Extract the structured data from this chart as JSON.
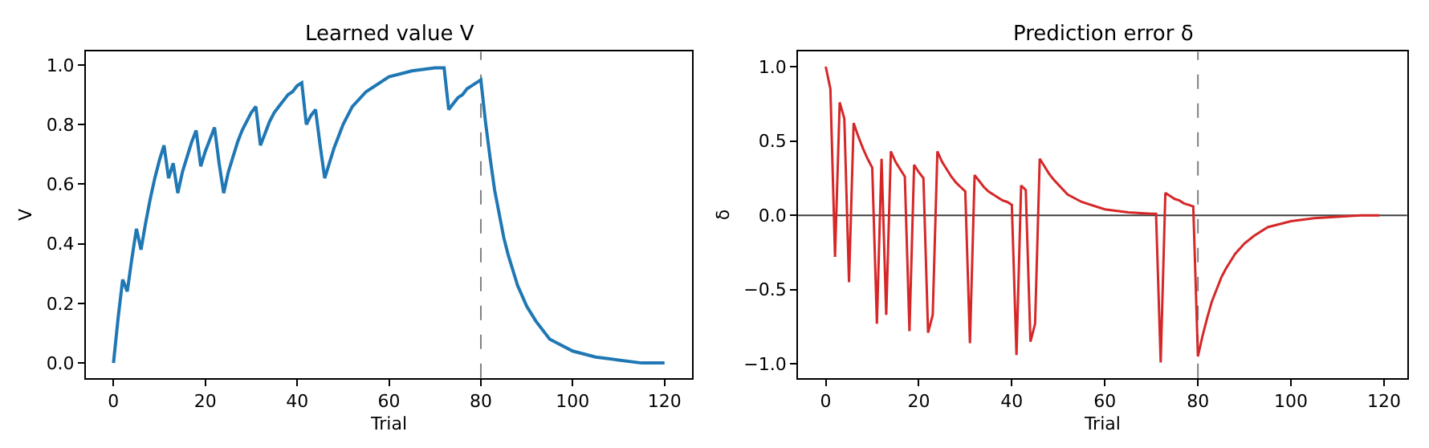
{
  "chart_data": [
    {
      "type": "line",
      "title": "Learned value V",
      "xlabel": "Trial",
      "ylabel": "V",
      "series": [
        {
          "color": "#1f77b4",
          "x": [
            0,
            1,
            2,
            3,
            4,
            5,
            6,
            7,
            8,
            9,
            10,
            11,
            12,
            13,
            14,
            15,
            16,
            17,
            18,
            19,
            20,
            21,
            22,
            23,
            24,
            25,
            26,
            27,
            28,
            29,
            30,
            31,
            32,
            33,
            34,
            35,
            36,
            37,
            38,
            39,
            40,
            41,
            42,
            43,
            44,
            45,
            46,
            47,
            48,
            49,
            50,
            52,
            55,
            60,
            65,
            70,
            72,
            73,
            74,
            75,
            76,
            77,
            78,
            79,
            80,
            81,
            82,
            83,
            84,
            85,
            86,
            87,
            88,
            90,
            92,
            95,
            100,
            105,
            110,
            115,
            120
          ],
          "values": [
            0,
            0.15,
            0.28,
            0.24,
            0.35,
            0.45,
            0.38,
            0.47,
            0.55,
            0.62,
            0.68,
            0.73,
            0.62,
            0.67,
            0.57,
            0.64,
            0.69,
            0.74,
            0.78,
            0.66,
            0.71,
            0.75,
            0.79,
            0.67,
            0.57,
            0.64,
            0.69,
            0.74,
            0.78,
            0.81,
            0.84,
            0.86,
            0.73,
            0.77,
            0.81,
            0.84,
            0.86,
            0.88,
            0.9,
            0.91,
            0.93,
            0.94,
            0.8,
            0.83,
            0.85,
            0.73,
            0.62,
            0.67,
            0.72,
            0.76,
            0.8,
            0.86,
            0.91,
            0.96,
            0.98,
            0.99,
            0.99,
            0.85,
            0.87,
            0.89,
            0.9,
            0.92,
            0.93,
            0.94,
            0.95,
            0.81,
            0.69,
            0.58,
            0.5,
            0.42,
            0.36,
            0.31,
            0.26,
            0.19,
            0.14,
            0.08,
            0.04,
            0.02,
            0.01,
            0.0,
            0.0
          ]
        }
      ],
      "xlim": [
        -6,
        126
      ],
      "ylim": [
        -0.05,
        1.044
      ],
      "xticks": [
        0,
        20,
        40,
        60,
        80,
        100,
        120
      ],
      "yticks": [
        {
          "value": 0,
          "label": "0.0"
        },
        {
          "value": 0.2,
          "label": "0.2"
        },
        {
          "value": 0.4,
          "label": "0.4"
        },
        {
          "value": 0.6,
          "label": "0.6"
        },
        {
          "value": 0.8,
          "label": "0.8"
        },
        {
          "value": 1,
          "label": "1.0"
        }
      ],
      "ref_lines": [
        {
          "axis": "x",
          "value": 80,
          "color": "#808080",
          "line_style": "dashed"
        }
      ]
    },
    {
      "type": "line",
      "title": "Prediction error δ",
      "xlabel": "Trial",
      "ylabel": "δ",
      "series": [
        {
          "color": "#d62728",
          "x": [
            0,
            1,
            2,
            3,
            4,
            5,
            6,
            7,
            8,
            9,
            10,
            11,
            12,
            13,
            14,
            15,
            16,
            17,
            18,
            19,
            20,
            21,
            22,
            23,
            24,
            25,
            26,
            27,
            28,
            29,
            30,
            31,
            32,
            33,
            34,
            35,
            36,
            37,
            38,
            39,
            40,
            41,
            42,
            43,
            44,
            45,
            46,
            47,
            48,
            49,
            52,
            55,
            60,
            65,
            70,
            71,
            72,
            73,
            74,
            75,
            76,
            77,
            78,
            79,
            80,
            81,
            82,
            83,
            84,
            85,
            86,
            87,
            88,
            90,
            92,
            95,
            100,
            105,
            110,
            115,
            119
          ],
          "values": [
            1,
            0.85,
            -0.28,
            0.76,
            0.65,
            -0.45,
            0.62,
            0.53,
            0.45,
            0.38,
            0.32,
            -0.73,
            0.38,
            -0.67,
            0.43,
            0.36,
            0.31,
            0.26,
            -0.78,
            0.34,
            0.29,
            0.25,
            -0.79,
            -0.67,
            0.43,
            0.36,
            0.31,
            0.26,
            0.22,
            0.19,
            0.16,
            -0.86,
            0.27,
            0.23,
            0.19,
            0.16,
            0.14,
            0.12,
            0.1,
            0.09,
            0.07,
            -0.94,
            0.2,
            0.17,
            -0.85,
            -0.73,
            0.38,
            0.33,
            0.28,
            0.24,
            0.14,
            0.09,
            0.04,
            0.02,
            0.01,
            0.01,
            -0.99,
            0.15,
            0.13,
            0.11,
            0.1,
            0.08,
            0.07,
            0.06,
            -0.95,
            -0.81,
            -0.69,
            -0.58,
            -0.5,
            -0.42,
            -0.36,
            -0.31,
            -0.26,
            -0.19,
            -0.14,
            -0.08,
            -0.04,
            -0.02,
            -0.01,
            0.0,
            0.0
          ]
        }
      ],
      "xlim": [
        -5.95,
        124.95
      ],
      "ylim": [
        -1.094,
        1.1
      ],
      "xticks": [
        0,
        20,
        40,
        60,
        80,
        100,
        120
      ],
      "yticks": [
        {
          "value": -1,
          "label": "−1.0"
        },
        {
          "value": -0.5,
          "label": "−0.5"
        },
        {
          "value": 0,
          "label": "0.0"
        },
        {
          "value": 0.5,
          "label": "0.5"
        },
        {
          "value": 1,
          "label": "1.0"
        }
      ],
      "ref_lines": [
        {
          "axis": "y",
          "value": 0,
          "color": "#404040",
          "line_style": "solid"
        },
        {
          "axis": "x",
          "value": 80,
          "color": "#808080",
          "line_style": "dashed"
        }
      ]
    }
  ]
}
